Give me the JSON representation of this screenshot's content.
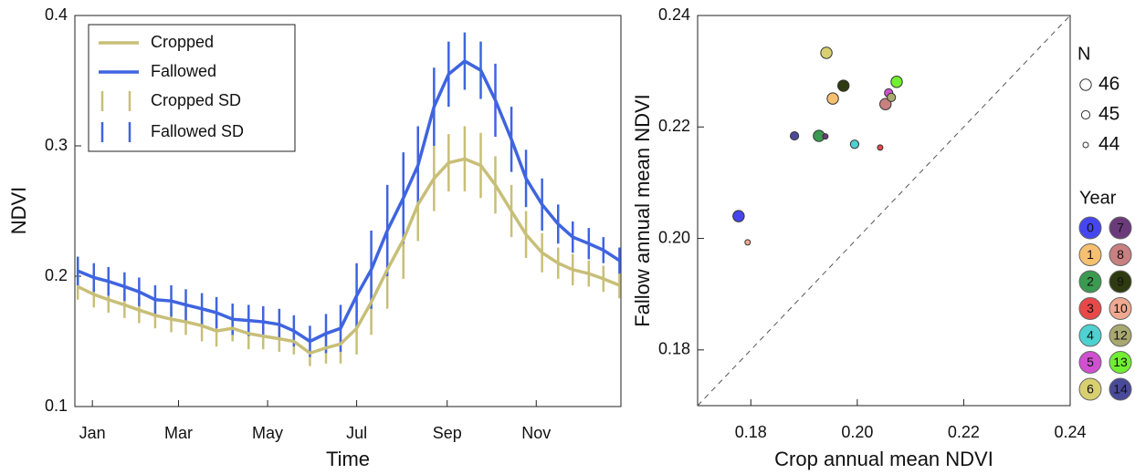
{
  "chart_data": [
    {
      "type": "line",
      "xlabel": "Time",
      "ylabel": "NDVI",
      "x": [
        -9,
        2,
        12,
        23,
        33,
        44,
        55,
        65,
        76,
        86,
        97,
        108,
        118,
        129,
        139,
        150,
        161,
        171,
        182,
        192,
        203,
        214,
        224,
        235,
        245,
        256,
        267,
        277,
        288,
        298,
        309,
        320,
        330,
        341,
        351,
        362
      ],
      "xlim": [
        -11,
        363
      ],
      "xticks": [
        {
          "value": 1,
          "label": "Jan"
        },
        {
          "value": 60,
          "label": "Mar"
        },
        {
          "value": 121,
          "label": "May"
        },
        {
          "value": 182,
          "label": "Jul"
        },
        {
          "value": 244,
          "label": "Sep"
        },
        {
          "value": 305,
          "label": "Nov"
        }
      ],
      "ylim": [
        0.1,
        0.4
      ],
      "yticks": [
        0.1,
        0.2,
        0.3,
        0.4
      ],
      "legend": "upper left",
      "series": [
        {
          "name": "Cropped",
          "sd_name": "Cropped SD",
          "color": "#c8bf78",
          "values": [
            0.192,
            0.186,
            0.182,
            0.178,
            0.174,
            0.17,
            0.167,
            0.165,
            0.162,
            0.158,
            0.16,
            0.156,
            0.154,
            0.152,
            0.15,
            0.141,
            0.145,
            0.148,
            0.16,
            0.18,
            0.205,
            0.228,
            0.255,
            0.275,
            0.287,
            0.29,
            0.285,
            0.27,
            0.25,
            0.232,
            0.218,
            0.21,
            0.205,
            0.202,
            0.198,
            0.193
          ],
          "errors": [
            0.01,
            0.01,
            0.01,
            0.01,
            0.01,
            0.01,
            0.01,
            0.01,
            0.012,
            0.012,
            0.01,
            0.012,
            0.01,
            0.01,
            0.01,
            0.01,
            0.012,
            0.015,
            0.02,
            0.025,
            0.03,
            0.03,
            0.028,
            0.025,
            0.022,
            0.025,
            0.025,
            0.022,
            0.02,
            0.018,
            0.015,
            0.012,
            0.012,
            0.01,
            0.01,
            0.01
          ]
        },
        {
          "name": "Fallowed",
          "sd_name": "Fallowed SD",
          "color": "#3f64e0",
          "values": [
            0.204,
            0.199,
            0.196,
            0.192,
            0.188,
            0.182,
            0.181,
            0.178,
            0.175,
            0.172,
            0.167,
            0.166,
            0.165,
            0.163,
            0.158,
            0.15,
            0.156,
            0.16,
            0.185,
            0.205,
            0.235,
            0.26,
            0.285,
            0.33,
            0.355,
            0.365,
            0.358,
            0.335,
            0.305,
            0.275,
            0.255,
            0.24,
            0.23,
            0.225,
            0.22,
            0.212
          ],
          "errors": [
            0.011,
            0.011,
            0.011,
            0.011,
            0.011,
            0.011,
            0.012,
            0.012,
            0.012,
            0.012,
            0.012,
            0.012,
            0.012,
            0.012,
            0.012,
            0.012,
            0.015,
            0.018,
            0.025,
            0.03,
            0.035,
            0.035,
            0.03,
            0.03,
            0.025,
            0.022,
            0.022,
            0.028,
            0.025,
            0.022,
            0.02,
            0.015,
            0.012,
            0.012,
            0.01,
            0.01
          ]
        }
      ]
    },
    {
      "type": "scatter",
      "xlabel": "Crop annual mean NDVI",
      "ylabel": "Fallow annual mean NDVI",
      "xlim": [
        0.17,
        0.24
      ],
      "xticks": [
        0.18,
        {
          "value": 0.2,
          "label": "0.20"
        },
        0.22,
        0.24
      ],
      "ylim": [
        0.17,
        0.24
      ],
      "yticks": [
        0.18,
        {
          "value": 0.2,
          "label": "0.20"
        },
        0.22,
        0.24
      ],
      "size_legend_title": "N",
      "size_legend": [
        46,
        45,
        44
      ],
      "legend_title": "Year",
      "series": [
        {
          "name": "0",
          "color": "#4646f0",
          "x": [
            0.1777
          ],
          "y": [
            0.204
          ],
          "size": [
            46
          ]
        },
        {
          "name": "1",
          "color": "#f5c070",
          "x": [
            0.1954
          ],
          "y": [
            0.2251
          ],
          "size": [
            46
          ]
        },
        {
          "name": "2",
          "color": "#3a9a50",
          "x": [
            0.1928
          ],
          "y": [
            0.2184
          ],
          "size": [
            46
          ]
        },
        {
          "name": "3",
          "color": "#e84848",
          "x": [
            0.2043
          ],
          "y": [
            0.2163
          ],
          "size": [
            44
          ]
        },
        {
          "name": "4",
          "color": "#50d0d0",
          "x": [
            0.1995
          ],
          "y": [
            0.2169
          ],
          "size": [
            45
          ]
        },
        {
          "name": "5",
          "color": "#d050d0",
          "x": [
            0.2059
          ],
          "y": [
            0.2261
          ],
          "size": [
            45
          ]
        },
        {
          "name": "6",
          "color": "#d8d070",
          "x": [
            0.1942
          ],
          "y": [
            0.2333
          ],
          "size": [
            46
          ]
        },
        {
          "name": "7",
          "color": "#6a3a7a",
          "x": [
            0.194
          ],
          "y": [
            0.2183
          ],
          "size": [
            44
          ]
        },
        {
          "name": "8",
          "color": "#c88080",
          "x": [
            0.2053
          ],
          "y": [
            0.2241
          ],
          "size": [
            46
          ]
        },
        {
          "name": "9",
          "color": "#2e3a10",
          "x": [
            0.1974
          ],
          "y": [
            0.2274
          ],
          "size": [
            46
          ]
        },
        {
          "name": "10",
          "color": "#f0a890",
          "x": [
            0.1794
          ],
          "y": [
            0.1993
          ],
          "size": [
            44
          ]
        },
        {
          "name": "12",
          "color": "#a8a870",
          "x": [
            0.2064
          ],
          "y": [
            0.2253
          ],
          "size": [
            45
          ]
        },
        {
          "name": "13",
          "color": "#70f030",
          "x": [
            0.2074
          ],
          "y": [
            0.2281
          ],
          "size": [
            46
          ]
        },
        {
          "name": "14",
          "color": "#4a4a9a",
          "x": [
            0.1882
          ],
          "y": [
            0.2184
          ],
          "size": [
            45
          ]
        }
      ]
    }
  ]
}
